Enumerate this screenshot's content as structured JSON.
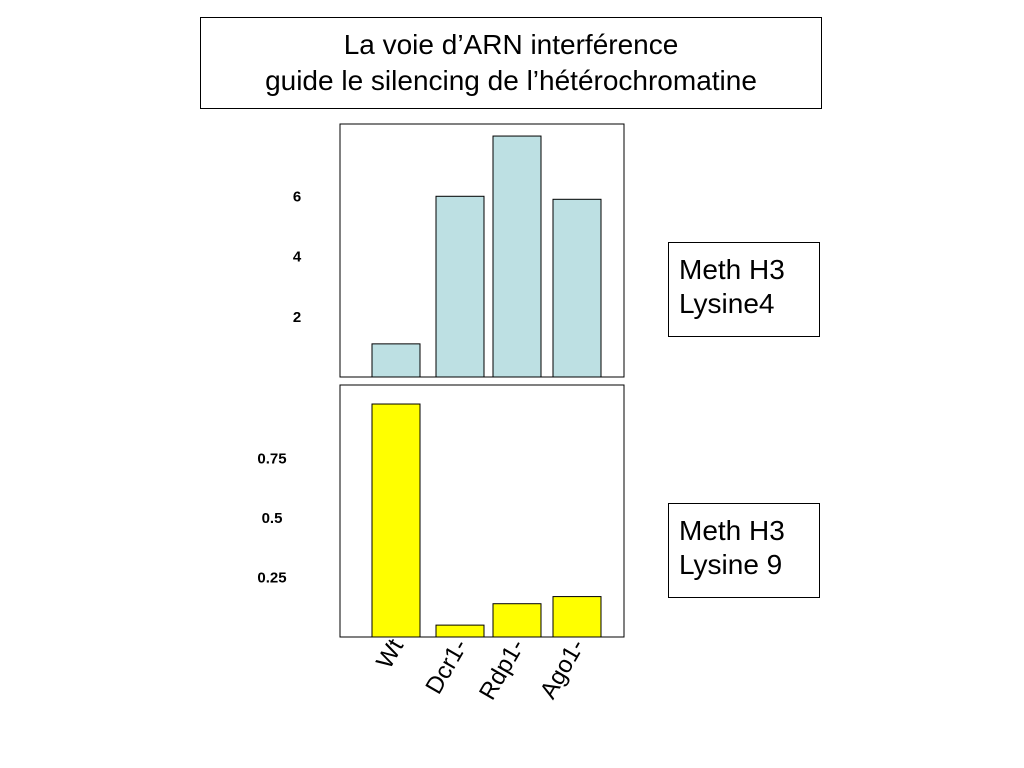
{
  "title": {
    "line1": "La voie d’ARN interférence",
    "line2": "guide le silencing de l’hétérochromatine"
  },
  "labels": {
    "top": [
      "Meth H3",
      "Lysine4"
    ],
    "bottom": [
      "Meth H3",
      "Lysine 9"
    ]
  },
  "colors": {
    "top_bar": "#bde0e3",
    "bottom_bar": "#ffff00",
    "stroke": "#000000"
  },
  "chart_data": [
    {
      "type": "bar",
      "categories": [
        "Wt",
        "Dcr1-",
        "Rdp1-",
        "Ago1-"
      ],
      "values": [
        1.1,
        6.0,
        8.0,
        5.9
      ],
      "ylim": [
        0,
        8.4
      ],
      "yticks": [
        2,
        4,
        6
      ],
      "ytick_labels": [
        "2",
        "4",
        "6"
      ],
      "title": "",
      "xlabel": "",
      "ylabel": ""
    },
    {
      "type": "bar",
      "categories": [
        "Wt",
        "Dcr1-",
        "Rdp1-",
        "Ago1-"
      ],
      "values": [
        0.98,
        0.05,
        0.14,
        0.17
      ],
      "ylim": [
        0,
        1.06
      ],
      "yticks": [
        0.25,
        0.5,
        0.75
      ],
      "ytick_labels": [
        "0.25",
        "0.5",
        "0.75"
      ],
      "title": "",
      "xlabel": "",
      "ylabel": ""
    }
  ]
}
